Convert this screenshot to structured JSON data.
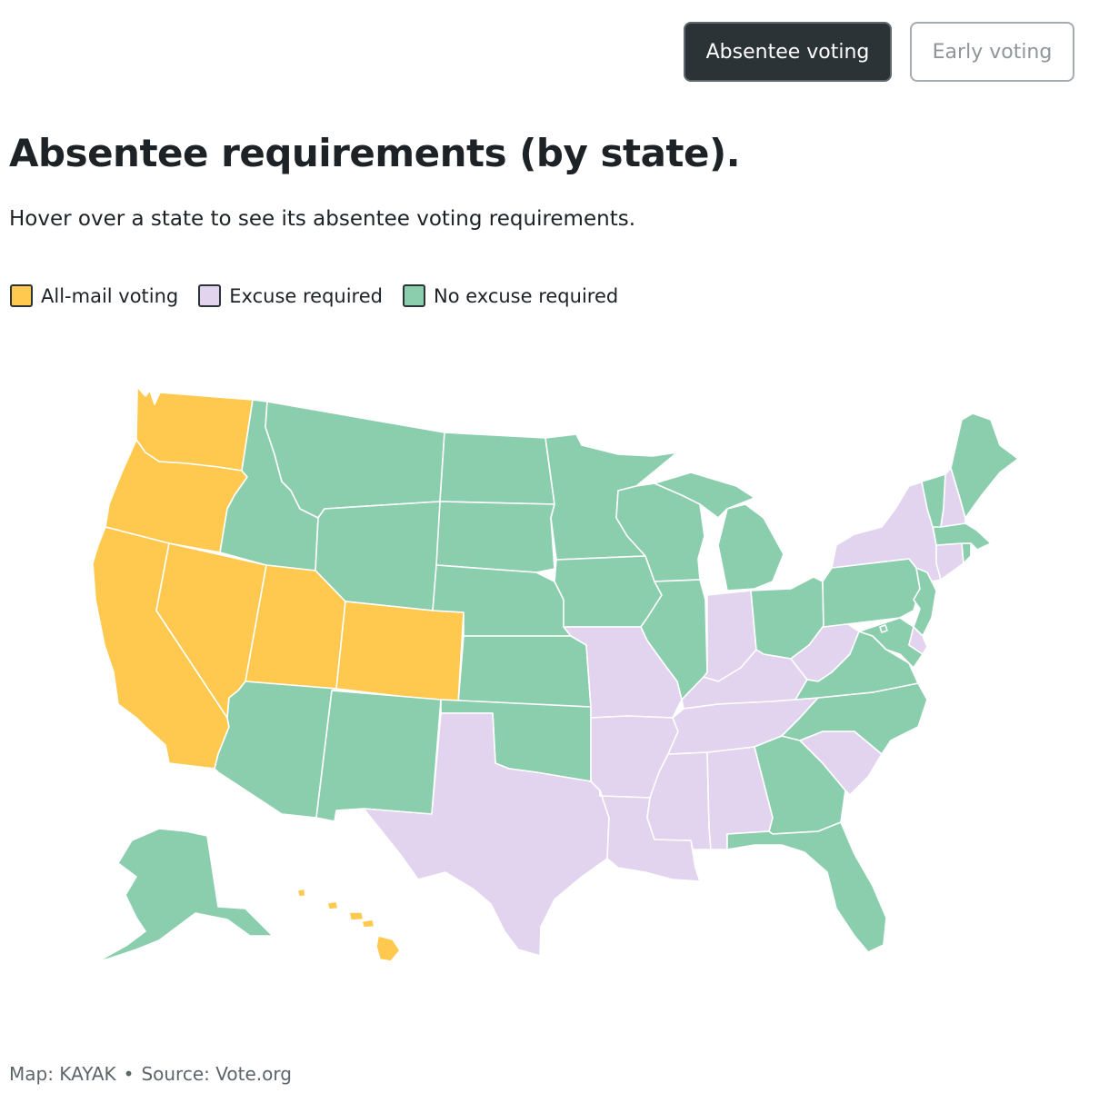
{
  "toggles": {
    "absentee_label": "Absentee voting",
    "early_label": "Early voting"
  },
  "title": "Absentee requirements (by state).",
  "subtitle": "Hover over a state to see its absentee voting requirements.",
  "legend": [
    {
      "key": "all_mail",
      "label": "All-mail voting",
      "color": "#ffc94f"
    },
    {
      "key": "excuse",
      "label": "Excuse required",
      "color": "#e2d3ef"
    },
    {
      "key": "no_excuse",
      "label": "No excuse required",
      "color": "#8bcead"
    }
  ],
  "footer": {
    "map_credit": "Map: KAYAK",
    "separator": "•",
    "source": "Source: Vote.org"
  },
  "states": {
    "WA": "all_mail",
    "OR": "all_mail",
    "CA": "all_mail",
    "NV": "all_mail",
    "UT": "all_mail",
    "CO": "all_mail",
    "HI": "all_mail",
    "ID": "no_excuse",
    "MT": "no_excuse",
    "WY": "no_excuse",
    "ND": "no_excuse",
    "SD": "no_excuse",
    "NE": "no_excuse",
    "KS": "no_excuse",
    "OK": "no_excuse",
    "AZ": "no_excuse",
    "NM": "no_excuse",
    "MN": "no_excuse",
    "IA": "no_excuse",
    "WI": "no_excuse",
    "IL": "no_excuse",
    "MI": "no_excuse",
    "OH": "no_excuse",
    "PA": "no_excuse",
    "NJ": "no_excuse",
    "MD": "no_excuse",
    "VA": "no_excuse",
    "NC": "no_excuse",
    "GA": "no_excuse",
    "FL": "no_excuse",
    "ME": "no_excuse",
    "VT": "no_excuse",
    "MA": "no_excuse",
    "RI": "no_excuse",
    "AK": "no_excuse",
    "DC": "no_excuse",
    "TX": "excuse",
    "MO": "excuse",
    "AR": "excuse",
    "LA": "excuse",
    "MS": "excuse",
    "AL": "excuse",
    "TN": "excuse",
    "KY": "excuse",
    "IN": "excuse",
    "WV": "excuse",
    "SC": "excuse",
    "NY": "excuse",
    "NH": "excuse",
    "CT": "excuse",
    "DE": "excuse"
  }
}
